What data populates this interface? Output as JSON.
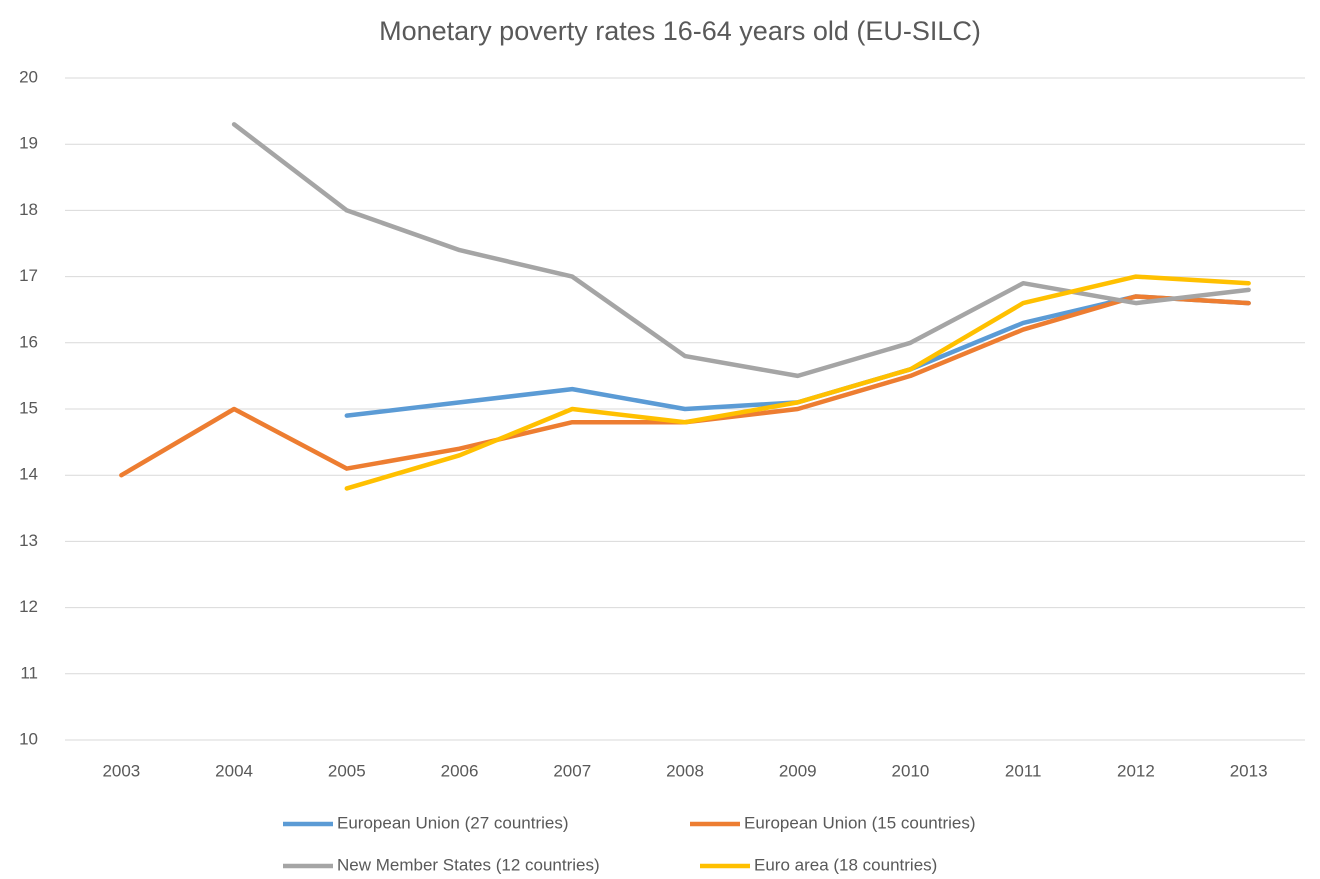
{
  "chart_data": {
    "type": "line",
    "title": "Monetary poverty rates 16-64 years old (EU-SILC)",
    "categories": [
      "2003",
      "2004",
      "2005",
      "2006",
      "2007",
      "2008",
      "2009",
      "2010",
      "2011",
      "2012",
      "2013"
    ],
    "series": [
      {
        "name": "European Union (27 countries)",
        "color": "#5b9bd5",
        "values": [
          null,
          null,
          14.9,
          15.1,
          15.3,
          15.0,
          15.1,
          15.6,
          16.3,
          16.7,
          16.6
        ]
      },
      {
        "name": "European Union (15 countries)",
        "color": "#ed7d31",
        "values": [
          14.0,
          15.0,
          14.1,
          14.4,
          14.8,
          14.8,
          15.0,
          15.5,
          16.2,
          16.7,
          16.6
        ]
      },
      {
        "name": "New Member States (12 countries)",
        "color": "#a5a5a5",
        "values": [
          null,
          19.3,
          18.0,
          17.4,
          17.0,
          15.8,
          15.5,
          16.0,
          16.9,
          16.6,
          16.8
        ]
      },
      {
        "name": "Euro area (18 countries)",
        "color": "#ffc000",
        "values": [
          null,
          null,
          13.8,
          14.3,
          15.0,
          14.8,
          15.1,
          15.6,
          16.6,
          17.0,
          16.9
        ]
      }
    ],
    "ylim": [
      10,
      20
    ],
    "yticks": [
      10,
      11,
      12,
      13,
      14,
      15,
      16,
      17,
      18,
      19,
      20
    ],
    "grid": true,
    "legend": "bottom"
  }
}
